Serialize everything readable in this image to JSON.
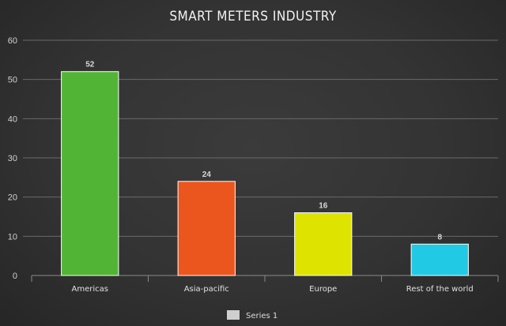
{
  "chart_data": {
    "type": "bar",
    "title": "SMART METERS INDUSTRY",
    "categories": [
      "Americas",
      "Asia-pacific",
      "Europe",
      "Rest of the world"
    ],
    "series": [
      {
        "name": "Series 1",
        "values": [
          52,
          24,
          16,
          8
        ],
        "colors": [
          "#51b435",
          "#ea561d",
          "#dee300",
          "#22c9e4"
        ]
      }
    ],
    "ylim": [
      0,
      60
    ],
    "yticks": [
      0,
      10,
      20,
      30,
      40,
      50,
      60
    ],
    "grid": true,
    "legend_position": "bottom",
    "legend_color": "#cfcfcf"
  }
}
